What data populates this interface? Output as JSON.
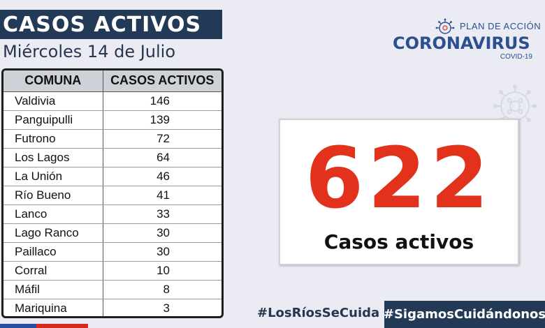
{
  "header": {
    "title": "CASOS ACTIVOS",
    "date": "Miércoles 14 de Julio"
  },
  "table": {
    "columns": [
      "COMUNA",
      "CASOS ACTIVOS"
    ],
    "rows": [
      {
        "comuna": "Valdivia",
        "casos": "146"
      },
      {
        "comuna": "Panguipulli",
        "casos": "139"
      },
      {
        "comuna": "Futrono",
        "casos": "72"
      },
      {
        "comuna": "Los Lagos",
        "casos": "64"
      },
      {
        "comuna": "La Unión",
        "casos": "46"
      },
      {
        "comuna": "Río Bueno",
        "casos": "41"
      },
      {
        "comuna": "Lanco",
        "casos": "33"
      },
      {
        "comuna": "Lago Ranco",
        "casos": "30"
      },
      {
        "comuna": "Paillaco",
        "casos": "30"
      },
      {
        "comuna": "Corral",
        "casos": "10"
      },
      {
        "comuna": "Máfil",
        "casos": "8"
      },
      {
        "comuna": "Mariquina",
        "casos": "3"
      }
    ]
  },
  "logo": {
    "plan": "PLAN DE ACCIÓN",
    "main": "CORONAVIRUS",
    "sub": "COVID-19"
  },
  "total": {
    "number": "622",
    "label": "Casos activos"
  },
  "hashtags": {
    "left": "#LosRíosSeCuida",
    "right": "#SigamosCuidándonos"
  },
  "colors": {
    "navy": "#233a56",
    "accent_red": "#e2321c",
    "logo_blue": "#2b4f8f"
  }
}
